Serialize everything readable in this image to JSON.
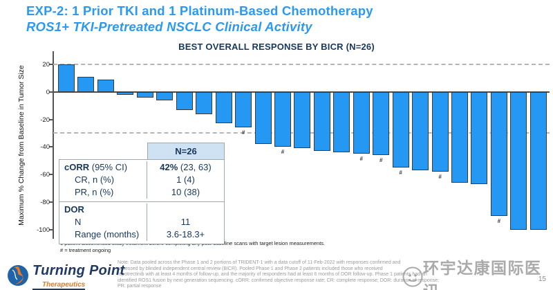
{
  "slide": {
    "title_line1": "EXP-2: 1 Prior TKI and 1 Platinum-Based Chemotherapy",
    "title_line2": "ROS1+ TKI-Pretreated NSCLC Clinical Activity",
    "page_number": "15"
  },
  "chart_data": {
    "type": "bar",
    "title": "BEST OVERALL RESPONSE BY BICR (N=26)",
    "ylabel": "Maximum % Change from Baseline in Tumor Size",
    "yticks": [
      20,
      0,
      -20,
      -40,
      -60,
      -80,
      -100
    ],
    "ylim": [
      -106,
      29
    ],
    "reference_lines": [
      20,
      -30
    ],
    "grid": "horizontal dashed reference lines at +20 and -30 only",
    "legend_note": "# = treatment ongoing",
    "marker_symbol": "#",
    "bar_count": 25,
    "bars": [
      {
        "value": 20
      },
      {
        "value": 11
      },
      {
        "value": 9
      },
      {
        "value": -2
      },
      {
        "value": -4
      },
      {
        "value": -6
      },
      {
        "value": -13
      },
      {
        "value": -16
      },
      {
        "value": -23
      },
      {
        "value": -26,
        "ongoing": true
      },
      {
        "value": -38
      },
      {
        "value": -40,
        "ongoing": true
      },
      {
        "value": -41
      },
      {
        "value": -43
      },
      {
        "value": -44
      },
      {
        "value": -45,
        "ongoing": true
      },
      {
        "value": -46,
        "ongoing": true
      },
      {
        "value": -55,
        "ongoing": true
      },
      {
        "value": -57
      },
      {
        "value": -58,
        "ongoing": true
      },
      {
        "value": -66
      },
      {
        "value": -67
      },
      {
        "value": -90,
        "ongoing": true
      },
      {
        "value": -100
      },
      {
        "value": -100
      }
    ]
  },
  "summary_table": {
    "header": "N=26",
    "sections": [
      {
        "rows": [
          {
            "label": [
              {
                "t": "cORR",
                "b": true
              },
              {
                "t": " (95% CI)"
              }
            ],
            "value": [
              {
                "t": "42%",
                "b": true
              },
              {
                "t": " (23, 63)"
              }
            ],
            "indent": false
          },
          {
            "label": [
              {
                "t": "CR, n (%)"
              }
            ],
            "value": [
              {
                "t": "1 (4)"
              }
            ],
            "indent": true
          },
          {
            "label": [
              {
                "t": "PR, n (%)"
              }
            ],
            "value": [
              {
                "t": "10 (38)"
              }
            ],
            "indent": true
          }
        ]
      },
      {
        "rows": [
          {
            "label": [
              {
                "t": "DOR",
                "b": true
              }
            ],
            "value": [
              {
                "t": ""
              }
            ],
            "indent": false
          },
          {
            "label": [
              {
                "t": "N"
              }
            ],
            "value": [
              {
                "t": "11"
              }
            ],
            "indent": true
          },
          {
            "label": [
              {
                "t": "Range (months)"
              }
            ],
            "value": [
              {
                "t": "3.6-18.3+"
              }
            ],
            "indent": true
          }
        ]
      }
    ]
  },
  "footnotes": {
    "line1": "1 patient discontinued study treatment before completing any post-baseline scans with target lesion measurements.",
    "line2": "# = treatment ongoing"
  },
  "note_lines": [
    "Note: Data pooled across the Phase 1 and 2 portions of TRIDENT-1 with a data cutoff of 11-Feb-2022 with responses confirmed and",
    "assessed by blinded independent central review (BICR). Pooled Phase 1 and Phase 2 patients included those who received",
    "repotrectinib with at least 4 months of follow-up, and the majority of responders had at least 6 months of DOR follow-up. Phase 1 patients had an",
    "identified ROS1 fusion by next generation sequencing. cORR: confirmed objective response rate; CR: complete response; DOR: duration of response;",
    "PR: partial response"
  ],
  "logo": {
    "name": "Turning Point",
    "sub": "Therapeutics"
  },
  "watermark": {
    "text": "环宇达康国际医讯"
  },
  "colors": {
    "title_blue": "#2b99f2",
    "navy": "#17375e",
    "bar_fill": "#2598f4",
    "bar_border": "#3a3a3a",
    "table_header_bg": "#cfe2f3",
    "logo_orange": "#e87722",
    "watermark_gray": "#9c9c9c"
  }
}
